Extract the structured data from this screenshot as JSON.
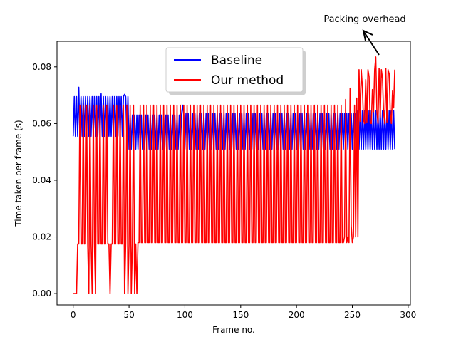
{
  "chart_data": {
    "type": "line",
    "title": "",
    "xlabel": "Frame no.",
    "ylabel": "Time taken per frame (s)",
    "xlim": [
      -14.5,
      302
    ],
    "ylim": [
      -0.004,
      0.089
    ],
    "xticks": [
      0,
      50,
      100,
      150,
      200,
      250,
      300
    ],
    "yticks": [
      0.0,
      0.02,
      0.04,
      0.06,
      0.08
    ],
    "xtick_labels": [
      "0",
      "50",
      "100",
      "150",
      "200",
      "250",
      "300"
    ],
    "ytick_labels": [
      "0.00",
      "0.02",
      "0.04",
      "0.06",
      "0.08"
    ],
    "grid": false,
    "legend_position": "top-center",
    "annotation": {
      "text": "Packing overhead",
      "points_to": "spikes in Our method after frame ~255"
    },
    "series": [
      {
        "name": "Baseline",
        "color": "#0000ff",
        "phases": [
          {
            "x_start": 0,
            "x_end": 50,
            "low": 0.0555,
            "high": 0.0695,
            "period": 2
          },
          {
            "x_start": 50,
            "x_end": 100,
            "low": 0.051,
            "high": 0.063,
            "period": 2
          },
          {
            "x_start": 100,
            "x_end": 254,
            "low": 0.051,
            "high": 0.0635,
            "period": 2
          },
          {
            "x_start": 254,
            "x_end": 288,
            "low": 0.051,
            "high": 0.0645,
            "period": 2
          }
        ],
        "peaks": [
          {
            "x": 5,
            "y": 0.0728
          },
          {
            "x": 25,
            "y": 0.0705
          },
          {
            "x": 46,
            "y": 0.0703
          },
          {
            "x": 98,
            "y": 0.0665
          }
        ]
      },
      {
        "name": "Our method",
        "color": "#ff0000",
        "segments": [
          {
            "x_start": 0,
            "x_end": 3,
            "low": 0.0,
            "high": 0.0,
            "period": 1
          },
          {
            "x_start": 3,
            "x_end": 57,
            "low": 0.0175,
            "high": 0.0665,
            "period": 3
          },
          {
            "x_start": 57,
            "x_end": 250,
            "low": 0.018,
            "high": 0.0665,
            "period": 3
          },
          {
            "x_start": 250,
            "x_end": 256,
            "low": 0.02,
            "high": 0.069,
            "period": 2
          },
          {
            "x_start": 256,
            "x_end": 288,
            "low": 0.06,
            "high": 0.079,
            "period": 2
          }
        ],
        "zero_dips": [
          3,
          14,
          17,
          20,
          33,
          46,
          49,
          52,
          55,
          57
        ],
        "spikes_late": [
          {
            "x": 259,
            "y": 0.0728
          },
          {
            "x": 262,
            "y": 0.0755
          },
          {
            "x": 265,
            "y": 0.0765
          },
          {
            "x": 268,
            "y": 0.072
          },
          {
            "x": 271,
            "y": 0.0835
          },
          {
            "x": 274,
            "y": 0.0795
          },
          {
            "x": 277,
            "y": 0.076
          },
          {
            "x": 280,
            "y": 0.0795
          },
          {
            "x": 283,
            "y": 0.0775
          },
          {
            "x": 286,
            "y": 0.0715
          }
        ],
        "late_low": [
          {
            "x": 257,
            "y": 0.0608
          },
          {
            "x": 260,
            "y": 0.0612
          },
          {
            "x": 263,
            "y": 0.0605
          },
          {
            "x": 266,
            "y": 0.0603
          },
          {
            "x": 269,
            "y": 0.0642
          },
          {
            "x": 272,
            "y": 0.0642
          },
          {
            "x": 275,
            "y": 0.0623
          },
          {
            "x": 278,
            "y": 0.0638
          },
          {
            "x": 281,
            "y": 0.0605
          },
          {
            "x": 284,
            "y": 0.0636
          },
          {
            "x": 287,
            "y": 0.0655
          }
        ],
        "mid_peaks": [
          {
            "x": 244,
            "y": 0.0685
          },
          {
            "x": 248,
            "y": 0.0725
          },
          {
            "x": 252,
            "y": 0.0665
          }
        ],
        "mid_lows": [
          {
            "x": 243,
            "y": 0.02
          },
          {
            "x": 246,
            "y": 0.02
          },
          {
            "x": 249,
            "y": 0.024
          },
          {
            "x": 250,
            "y": 0.018
          }
        ]
      }
    ]
  }
}
